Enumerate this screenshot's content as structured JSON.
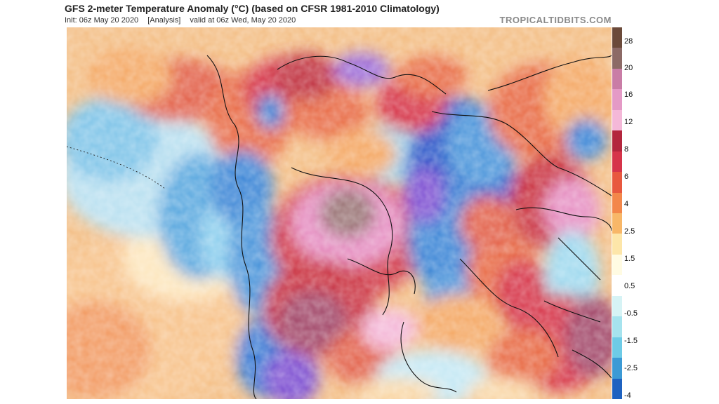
{
  "header": {
    "title": "GFS 2-meter Temperature Anomaly (°C) (based on CFSR 1981-2010 Climatology)",
    "init": "Init: 06z May 20 2020",
    "analysis": "[Analysis]",
    "valid": "valid at 06z Wed, May 20 2020",
    "credit": "TROPICALTIDBITS.COM"
  },
  "colorbar": {
    "labels": [
      "28",
      "20",
      "16",
      "12",
      "8",
      "6",
      "4",
      "2.5",
      "1.5",
      "0.5",
      "-0.5",
      "-1.5",
      "-2.5",
      "-4"
    ],
    "colors": [
      "#6b4a3a",
      "#8c6a66",
      "#c97da6",
      "#e49ac6",
      "#f4b8d8",
      "#b3263d",
      "#d6344a",
      "#e8583f",
      "#f3874a",
      "#f8b768",
      "#fde6a9",
      "#fffbe2",
      "#ffffff",
      "#d6f3f5",
      "#a6e3ee",
      "#6ecbe6",
      "#3c9ad5",
      "#1f62c0"
    ]
  },
  "colors": {
    "strong_warm": "#c9323f",
    "warm": "#e86b45",
    "mild_warm": "#f4a865",
    "neutral": "#fbe7b9",
    "cool": "#9fd9ee",
    "cold": "#3d86d6",
    "very_cold": "#2c55c8",
    "purple": "#7d4fd1",
    "pink": "#e690c3",
    "brown_peak": "#8a6b6b"
  }
}
